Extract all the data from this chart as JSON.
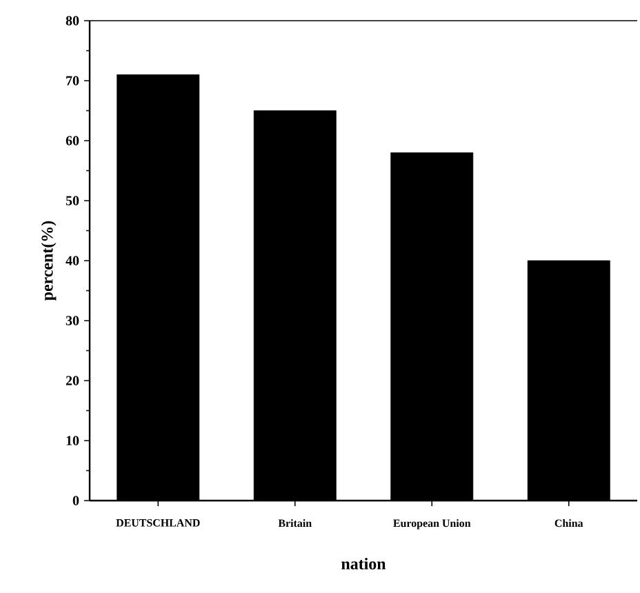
{
  "chart_data": {
    "type": "bar",
    "xlabel": "nation",
    "ylabel": "percent(%)",
    "categories": [
      "DEUTSCHLAND",
      "Britain",
      "European Union",
      "China"
    ],
    "values": [
      71,
      65,
      58,
      40
    ],
    "color": "#000000",
    "ylim": [
      0,
      80
    ],
    "yticks": [
      0,
      10,
      20,
      30,
      40,
      50,
      60,
      70,
      80
    ],
    "grid": false
  }
}
